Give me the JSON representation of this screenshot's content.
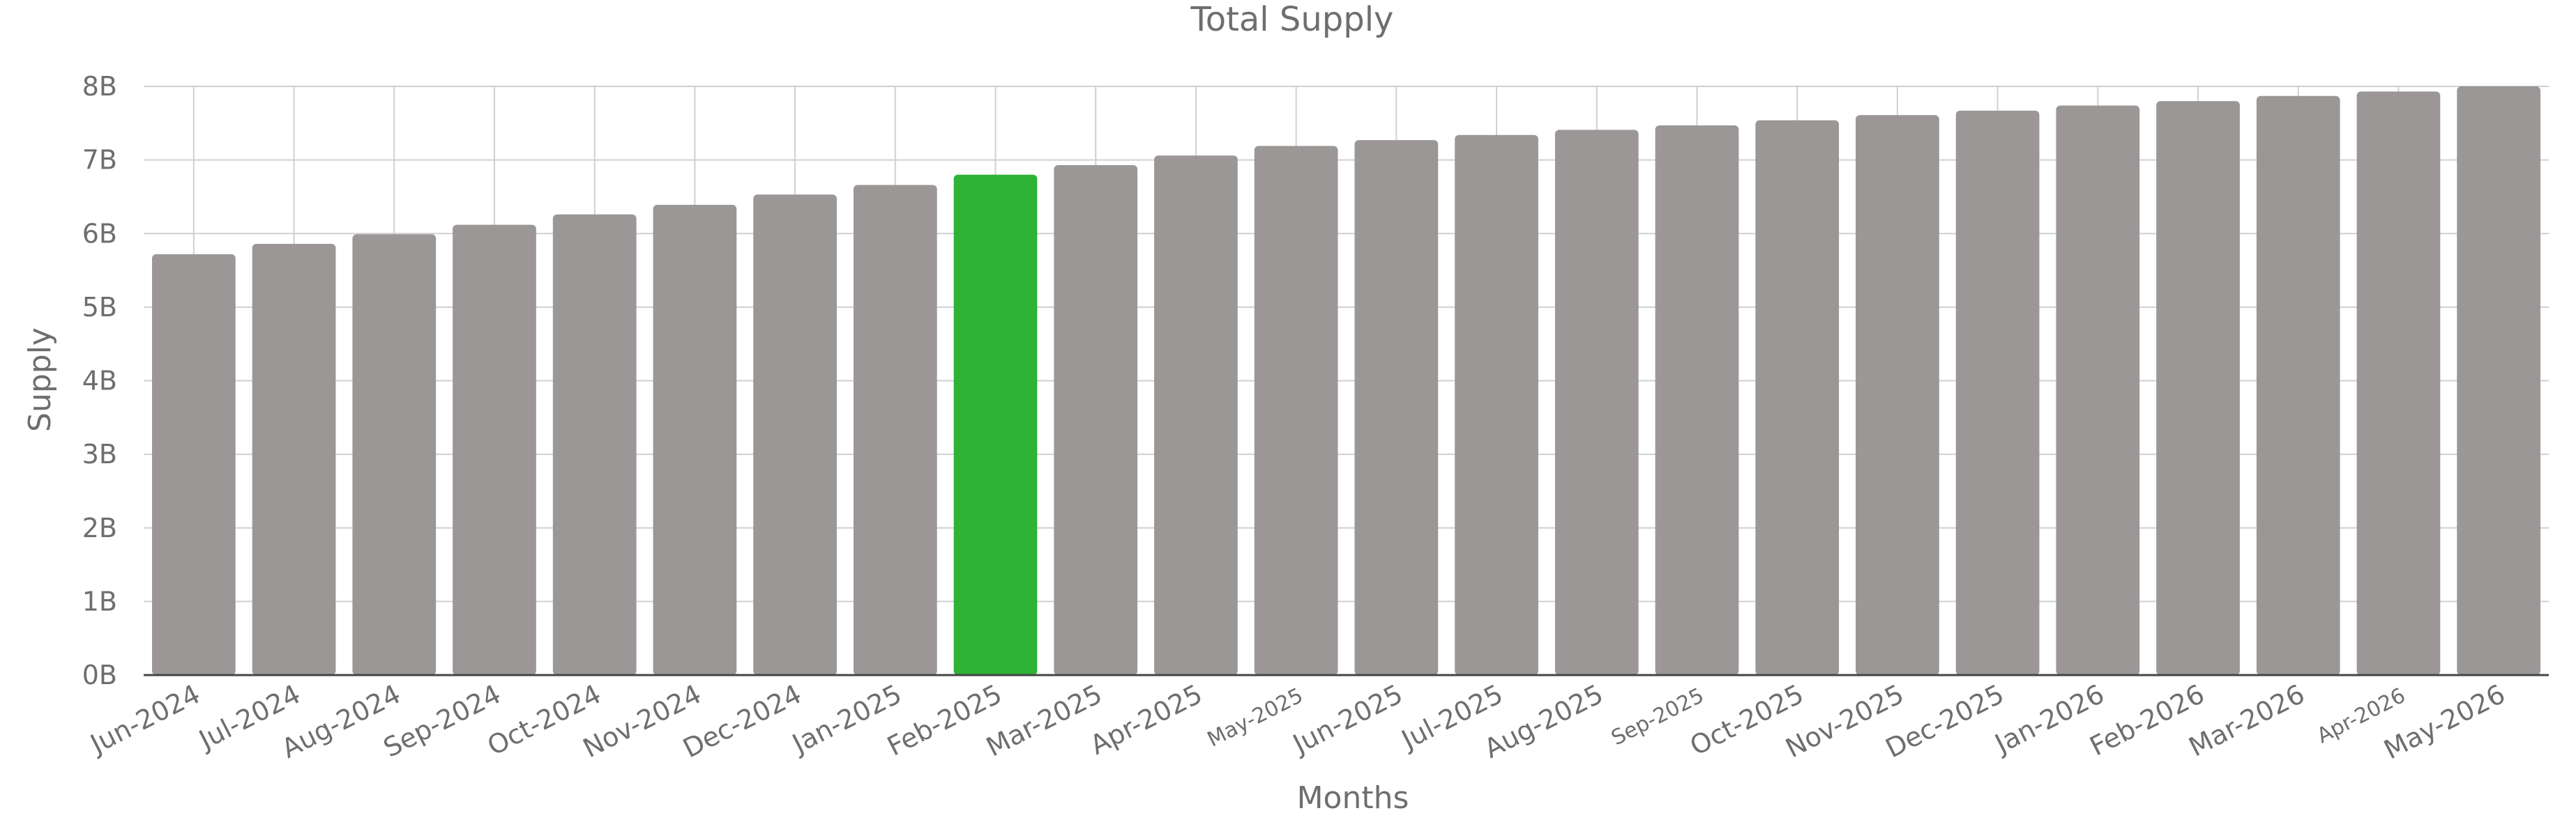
{
  "chart_data": {
    "type": "bar",
    "title": "Total Supply",
    "xlabel": "Months",
    "ylabel": "Supply",
    "ylim": [
      0,
      8
    ],
    "y_unit": "B",
    "y_ticks": [
      "0B",
      "1B",
      "2B",
      "3B",
      "4B",
      "5B",
      "6B",
      "7B",
      "8B"
    ],
    "grid": true,
    "categories": [
      "Jun-2024",
      "Jul-2024",
      "Aug-2024",
      "Sep-2024",
      "Oct-2024",
      "Nov-2024",
      "Dec-2024",
      "Jan-2025",
      "Feb-2025",
      "Mar-2025",
      "Apr-2025",
      "May-2025",
      "Jun-2025",
      "Jul-2025",
      "Aug-2025",
      "Sep-2025",
      "Oct-2025",
      "Nov-2025",
      "Dec-2025",
      "Jan-2026",
      "Feb-2026",
      "Mar-2026",
      "Apr-2026",
      "May-2026"
    ],
    "values": [
      5.72,
      5.86,
      5.99,
      6.12,
      6.26,
      6.39,
      6.53,
      6.66,
      6.8,
      6.93,
      7.06,
      7.19,
      7.27,
      7.34,
      7.41,
      7.47,
      7.54,
      7.61,
      7.67,
      7.74,
      7.8,
      7.87,
      7.93,
      8.0
    ],
    "highlight_category": "Feb-2025",
    "colors": {
      "bar": "#9a9796",
      "highlight": "#2eb337",
      "text": "#6e6e6e",
      "grid": "#d0d0d0"
    }
  }
}
